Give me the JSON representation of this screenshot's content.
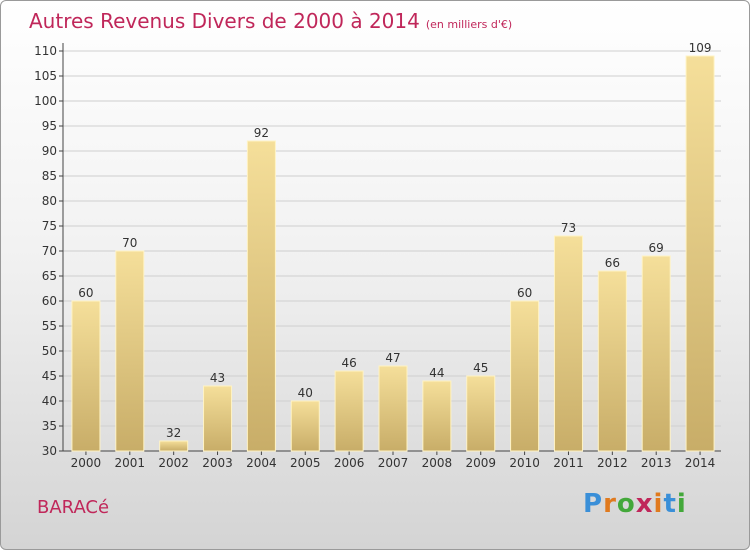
{
  "title": "Autres Revenus Divers de 2000 à 2014",
  "subtitle": "(en milliers d'€)",
  "town": "BARACé",
  "logo": {
    "text": "Proxiti",
    "letters": [
      "P",
      "r",
      "o",
      "x",
      "i",
      "t",
      "i"
    ],
    "colors": [
      "#3a8fd8",
      "#e07a1e",
      "#43a83a",
      "#c0275a",
      "#e07a1e",
      "#3a8fd8",
      "#43a83a"
    ]
  },
  "colors": {
    "bar_top": "#f5df9a",
    "bar_bottom": "#c8ad68",
    "title": "#c0275a",
    "grid": "#cfcfcf"
  },
  "chart_data": {
    "type": "bar",
    "categories": [
      "2000",
      "2001",
      "2002",
      "2003",
      "2004",
      "2005",
      "2006",
      "2007",
      "2008",
      "2009",
      "2010",
      "2011",
      "2012",
      "2013",
      "2014"
    ],
    "values": [
      60,
      70,
      32,
      43,
      92,
      40,
      46,
      47,
      44,
      45,
      60,
      73,
      66,
      69,
      109
    ],
    "yticks": [
      30,
      35,
      40,
      45,
      50,
      55,
      60,
      65,
      70,
      75,
      80,
      85,
      90,
      95,
      100,
      105,
      110
    ],
    "ylim": [
      30,
      110
    ],
    "grid": true
  }
}
